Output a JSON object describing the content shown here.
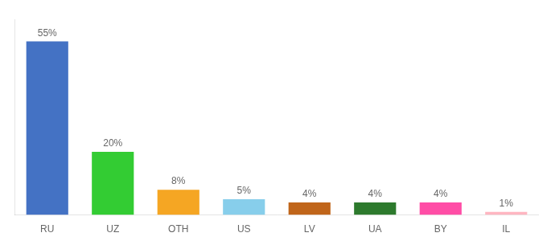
{
  "chart_data": {
    "type": "bar",
    "categories": [
      "RU",
      "UZ",
      "OTH",
      "US",
      "LV",
      "UA",
      "BY",
      "IL"
    ],
    "values": [
      55,
      20,
      8,
      5,
      4,
      4,
      4,
      1
    ],
    "value_labels": [
      "55%",
      "20%",
      "8%",
      "5%",
      "4%",
      "4%",
      "4%",
      "1%"
    ],
    "colors": [
      "#4472c4",
      "#33cc33",
      "#f5a623",
      "#87ceeb",
      "#c0651a",
      "#2d7a2d",
      "#ff4da6",
      "#ffb6c1"
    ],
    "ylim": [
      0,
      62
    ],
    "grid": false,
    "data_labels": true,
    "tick_labels": "x"
  }
}
